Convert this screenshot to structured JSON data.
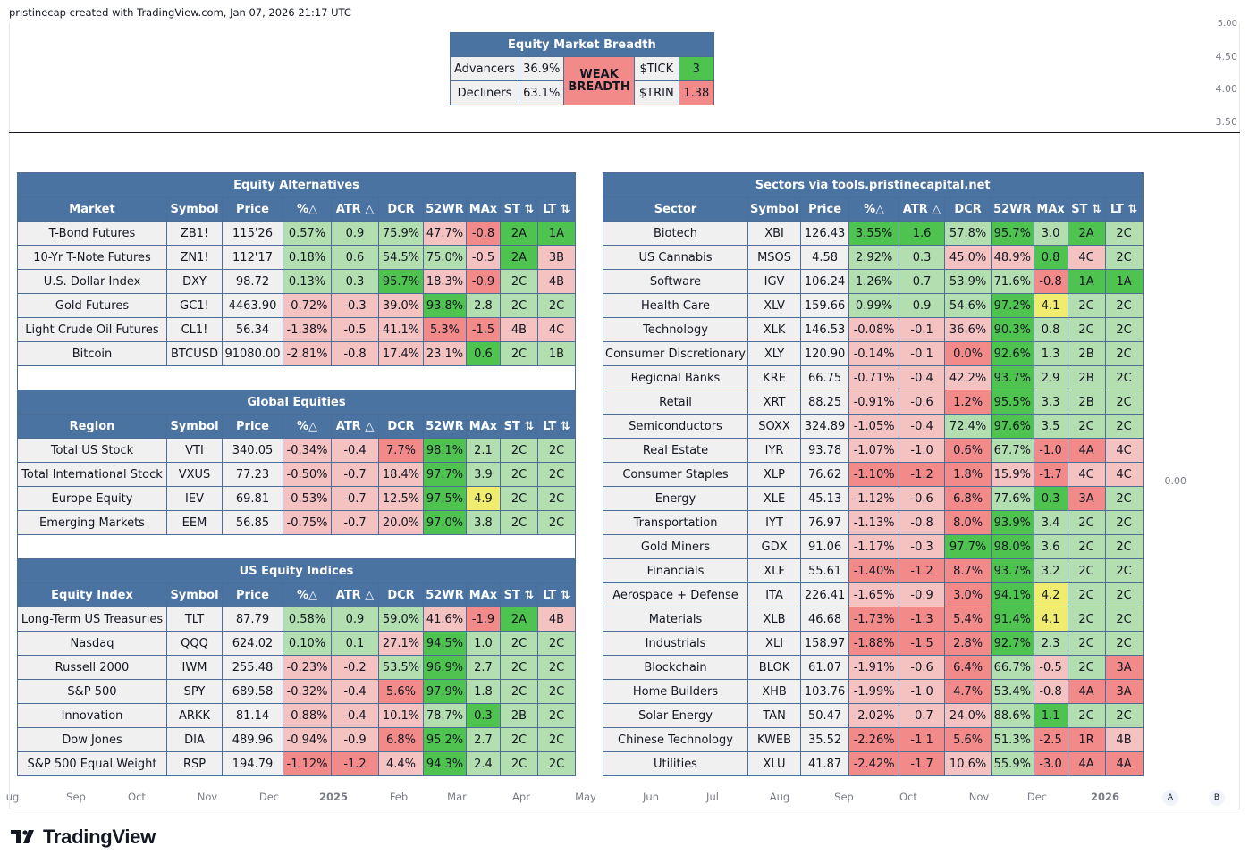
{
  "header": {
    "credit": "pristinecap created with TradingView.com, Jan 07, 2026 21:17 UTC"
  },
  "price_axis": {
    "top": [
      "5.00",
      "4.50",
      "4.00",
      "3.50"
    ],
    "bottom": "0.00"
  },
  "time_axis": [
    "ug",
    "Sep",
    "Oct",
    "Nov",
    "Dec",
    "2025",
    "Feb",
    "Mar",
    "Apr",
    "May",
    "Jun",
    "Jul",
    "Aug",
    "Sep",
    "Oct",
    "Nov",
    "Dec",
    "2026"
  ],
  "time_axis_bold": [
    "2025",
    "2026"
  ],
  "buttons": {
    "a": "A",
    "b": "B"
  },
  "logo": {
    "text": "TradingView"
  },
  "colors": {
    "header_blue": "#4b73a1",
    "green_light": "#b3dfb0",
    "green_strong": "#4fc34f",
    "red_light": "#f5c2c2",
    "red_strong": "#f28a8a",
    "yellow": "#f0ec6f"
  },
  "breadth": {
    "title": "Equity Market Breadth",
    "advancers_label": "Advancers",
    "advancers_value": "36.9%",
    "decliners_label": "Decliners",
    "decliners_value": "63.1%",
    "status": "WEAK BREADTH",
    "tick_label": "$TICK",
    "tick_value": "3",
    "trin_label": "$TRIN",
    "trin_value": "1.38"
  },
  "left_tables": [
    {
      "title": "Equity Alternatives",
      "headers": [
        "Market",
        "Symbol",
        "Price",
        "%△",
        "ATR △",
        "DCR",
        "52WR",
        "MAx",
        "ST ⇅",
        "LT ⇅"
      ],
      "rows": [
        {
          "cells": [
            "T-Bond Futures",
            "ZB1!",
            "115'26",
            "0.57%",
            "0.9",
            "75.9%",
            "47.7%",
            "-0.8",
            "2A",
            "1A"
          ],
          "colors": [
            "",
            "",
            "",
            "g",
            "g",
            "g",
            "r",
            "R",
            "G",
            "G"
          ]
        },
        {
          "cells": [
            "10-Yr T-Note Futures",
            "ZN1!",
            "112'17",
            "0.18%",
            "0.6",
            "54.5%",
            "75.0%",
            "-0.5",
            "2A",
            "3B"
          ],
          "colors": [
            "",
            "",
            "",
            "g",
            "g",
            "g",
            "g",
            "r",
            "G",
            "r"
          ]
        },
        {
          "cells": [
            "U.S. Dollar Index",
            "DXY",
            "98.72",
            "0.13%",
            "0.3",
            "95.7%",
            "18.3%",
            "-0.9",
            "2C",
            "4B"
          ],
          "colors": [
            "",
            "",
            "",
            "g",
            "g",
            "G",
            "r",
            "R",
            "g",
            "r"
          ]
        },
        {
          "cells": [
            "Gold Futures",
            "GC1!",
            "4463.90",
            "-0.72%",
            "-0.3",
            "39.0%",
            "93.8%",
            "2.8",
            "2C",
            "2C"
          ],
          "colors": [
            "",
            "",
            "",
            "r",
            "r",
            "r",
            "G",
            "g",
            "g",
            "g"
          ]
        },
        {
          "cells": [
            "Light Crude Oil Futures",
            "CL1!",
            "56.34",
            "-1.38%",
            "-0.5",
            "41.1%",
            "5.3%",
            "-1.5",
            "4B",
            "4C"
          ],
          "colors": [
            "",
            "",
            "",
            "r",
            "r",
            "r",
            "R",
            "R",
            "r",
            "r"
          ]
        },
        {
          "cells": [
            "Bitcoin",
            "BTCUSD",
            "91080.00",
            "-2.81%",
            "-0.8",
            "17.4%",
            "23.1%",
            "0.6",
            "2C",
            "1B"
          ],
          "colors": [
            "",
            "",
            "",
            "r",
            "r",
            "r",
            "r",
            "G",
            "g",
            "g"
          ]
        }
      ]
    },
    {
      "title": "Global Equities",
      "headers": [
        "Region",
        "Symbol",
        "Price",
        "%△",
        "ATR △",
        "DCR",
        "52WR",
        "MAx",
        "ST ⇅",
        "LT ⇅"
      ],
      "rows": [
        {
          "cells": [
            "Total US Stock",
            "VTI",
            "340.05",
            "-0.34%",
            "-0.4",
            "7.7%",
            "98.1%",
            "2.1",
            "2C",
            "2C"
          ],
          "colors": [
            "",
            "",
            "",
            "r",
            "r",
            "R",
            "G",
            "g",
            "g",
            "g"
          ]
        },
        {
          "cells": [
            "Total International Stock",
            "VXUS",
            "77.23",
            "-0.50%",
            "-0.7",
            "18.4%",
            "97.7%",
            "3.9",
            "2C",
            "2C"
          ],
          "colors": [
            "",
            "",
            "",
            "r",
            "r",
            "r",
            "G",
            "g",
            "g",
            "g"
          ]
        },
        {
          "cells": [
            "Europe Equity",
            "IEV",
            "69.81",
            "-0.53%",
            "-0.7",
            "12.5%",
            "97.5%",
            "4.9",
            "2C",
            "2C"
          ],
          "colors": [
            "",
            "",
            "",
            "r",
            "r",
            "r",
            "G",
            "y",
            "g",
            "g"
          ]
        },
        {
          "cells": [
            "Emerging Markets",
            "EEM",
            "56.85",
            "-0.75%",
            "-0.7",
            "20.0%",
            "97.0%",
            "3.8",
            "2C",
            "2C"
          ],
          "colors": [
            "",
            "",
            "",
            "r",
            "r",
            "r",
            "G",
            "g",
            "g",
            "g"
          ]
        }
      ]
    },
    {
      "title": "US Equity Indices",
      "headers": [
        "Equity Index",
        "Symbol",
        "Price",
        "%△",
        "ATR △",
        "DCR",
        "52WR",
        "MAx",
        "ST ⇅",
        "LT ⇅"
      ],
      "rows": [
        {
          "cells": [
            "Long-Term US Treasuries",
            "TLT",
            "87.79",
            "0.58%",
            "0.9",
            "59.0%",
            "41.6%",
            "-1.9",
            "2A",
            "4B"
          ],
          "colors": [
            "",
            "",
            "",
            "g",
            "g",
            "g",
            "r",
            "R",
            "G",
            "r"
          ]
        },
        {
          "cells": [
            "Nasdaq",
            "QQQ",
            "624.02",
            "0.10%",
            "0.1",
            "27.1%",
            "94.5%",
            "1.0",
            "2C",
            "2C"
          ],
          "colors": [
            "",
            "",
            "",
            "g",
            "g",
            "r",
            "G",
            "g",
            "g",
            "g"
          ]
        },
        {
          "cells": [
            "Russell 2000",
            "IWM",
            "255.48",
            "-0.23%",
            "-0.2",
            "53.5%",
            "96.9%",
            "2.7",
            "2C",
            "2C"
          ],
          "colors": [
            "",
            "",
            "",
            "r",
            "r",
            "g",
            "G",
            "g",
            "g",
            "g"
          ]
        },
        {
          "cells": [
            "S&P 500",
            "SPY",
            "689.58",
            "-0.32%",
            "-0.4",
            "5.6%",
            "97.9%",
            "1.8",
            "2C",
            "2C"
          ],
          "colors": [
            "",
            "",
            "",
            "r",
            "r",
            "R",
            "G",
            "g",
            "g",
            "g"
          ]
        },
        {
          "cells": [
            "Innovation",
            "ARKK",
            "81.14",
            "-0.88%",
            "-0.4",
            "10.1%",
            "78.7%",
            "0.3",
            "2B",
            "2C"
          ],
          "colors": [
            "",
            "",
            "",
            "r",
            "r",
            "r",
            "g",
            "G",
            "g",
            "g"
          ]
        },
        {
          "cells": [
            "Dow Jones",
            "DIA",
            "489.96",
            "-0.94%",
            "-0.9",
            "6.8%",
            "95.2%",
            "2.7",
            "2C",
            "2C"
          ],
          "colors": [
            "",
            "",
            "",
            "r",
            "r",
            "R",
            "G",
            "g",
            "g",
            "g"
          ]
        },
        {
          "cells": [
            "S&P 500 Equal Weight",
            "RSP",
            "194.79",
            "-1.12%",
            "-1.2",
            "4.4%",
            "94.3%",
            "2.4",
            "2C",
            "2C"
          ],
          "colors": [
            "",
            "",
            "",
            "R",
            "R",
            "r",
            "G",
            "g",
            "g",
            "g"
          ]
        }
      ]
    }
  ],
  "sectors": {
    "title": "Sectors via tools.pristinecapital.net",
    "headers": [
      "Sector",
      "Symbol",
      "Price",
      "%△",
      "ATR △",
      "DCR",
      "52WR",
      "MAx",
      "ST ⇅",
      "LT ⇅"
    ],
    "rows": [
      {
        "cells": [
          "Biotech",
          "XBI",
          "126.43",
          "3.55%",
          "1.6",
          "57.8%",
          "95.7%",
          "3.0",
          "2A",
          "2C"
        ],
        "colors": [
          "",
          "",
          "",
          "G",
          "G",
          "g",
          "G",
          "g",
          "G",
          "g"
        ]
      },
      {
        "cells": [
          "US Cannabis",
          "MSOS",
          "4.58",
          "2.92%",
          "0.3",
          "45.0%",
          "48.9%",
          "0.8",
          "4C",
          "2C"
        ],
        "colors": [
          "",
          "",
          "",
          "g",
          "g",
          "r",
          "r",
          "G",
          "r",
          "g"
        ]
      },
      {
        "cells": [
          "Software",
          "IGV",
          "106.24",
          "1.26%",
          "0.7",
          "53.9%",
          "71.6%",
          "-0.8",
          "1A",
          "1A"
        ],
        "colors": [
          "",
          "",
          "",
          "g",
          "g",
          "g",
          "g",
          "R",
          "G",
          "G"
        ]
      },
      {
        "cells": [
          "Health Care",
          "XLV",
          "159.66",
          "0.99%",
          "0.9",
          "54.6%",
          "97.2%",
          "4.1",
          "2C",
          "2C"
        ],
        "colors": [
          "",
          "",
          "",
          "g",
          "g",
          "g",
          "G",
          "y",
          "g",
          "g"
        ]
      },
      {
        "cells": [
          "Technology",
          "XLK",
          "146.53",
          "-0.08%",
          "-0.1",
          "36.6%",
          "90.3%",
          "0.8",
          "2C",
          "2C"
        ],
        "colors": [
          "",
          "",
          "",
          "r",
          "r",
          "r",
          "G",
          "g",
          "g",
          "g"
        ]
      },
      {
        "cells": [
          "Consumer Discretionary",
          "XLY",
          "120.90",
          "-0.14%",
          "-0.1",
          "0.0%",
          "92.6%",
          "1.3",
          "2B",
          "2C"
        ],
        "colors": [
          "",
          "",
          "",
          "r",
          "r",
          "R",
          "G",
          "g",
          "g",
          "g"
        ]
      },
      {
        "cells": [
          "Regional Banks",
          "KRE",
          "66.75",
          "-0.71%",
          "-0.4",
          "42.2%",
          "93.7%",
          "2.9",
          "2B",
          "2C"
        ],
        "colors": [
          "",
          "",
          "",
          "r",
          "r",
          "r",
          "G",
          "g",
          "g",
          "g"
        ]
      },
      {
        "cells": [
          "Retail",
          "XRT",
          "88.25",
          "-0.91%",
          "-0.6",
          "1.2%",
          "95.5%",
          "3.3",
          "2B",
          "2C"
        ],
        "colors": [
          "",
          "",
          "",
          "r",
          "r",
          "R",
          "G",
          "g",
          "g",
          "g"
        ]
      },
      {
        "cells": [
          "Semiconductors",
          "SOXX",
          "324.89",
          "-1.05%",
          "-0.4",
          "72.4%",
          "97.6%",
          "3.5",
          "2C",
          "2C"
        ],
        "colors": [
          "",
          "",
          "",
          "r",
          "r",
          "g",
          "G",
          "g",
          "g",
          "g"
        ]
      },
      {
        "cells": [
          "Real Estate",
          "IYR",
          "93.78",
          "-1.07%",
          "-1.0",
          "0.6%",
          "67.7%",
          "-1.0",
          "4A",
          "4C"
        ],
        "colors": [
          "",
          "",
          "",
          "r",
          "r",
          "R",
          "g",
          "R",
          "R",
          "r"
        ]
      },
      {
        "cells": [
          "Consumer Staples",
          "XLP",
          "76.62",
          "-1.10%",
          "-1.2",
          "1.8%",
          "15.9%",
          "-1.7",
          "4C",
          "4C"
        ],
        "colors": [
          "",
          "",
          "",
          "R",
          "R",
          "R",
          "r",
          "R",
          "r",
          "r"
        ]
      },
      {
        "cells": [
          "Energy",
          "XLE",
          "45.13",
          "-1.12%",
          "-0.6",
          "6.8%",
          "77.6%",
          "0.3",
          "3A",
          "2C"
        ],
        "colors": [
          "",
          "",
          "",
          "r",
          "r",
          "R",
          "g",
          "G",
          "R",
          "g"
        ]
      },
      {
        "cells": [
          "Transportation",
          "IYT",
          "76.97",
          "-1.13%",
          "-0.8",
          "8.0%",
          "93.9%",
          "3.4",
          "2C",
          "2C"
        ],
        "colors": [
          "",
          "",
          "",
          "r",
          "r",
          "R",
          "G",
          "g",
          "g",
          "g"
        ]
      },
      {
        "cells": [
          "Gold Miners",
          "GDX",
          "91.06",
          "-1.17%",
          "-0.3",
          "97.7%",
          "98.0%",
          "3.6",
          "2C",
          "2C"
        ],
        "colors": [
          "",
          "",
          "",
          "r",
          "r",
          "G",
          "G",
          "g",
          "g",
          "g"
        ]
      },
      {
        "cells": [
          "Financials",
          "XLF",
          "55.61",
          "-1.40%",
          "-1.2",
          "8.7%",
          "93.7%",
          "3.2",
          "2C",
          "2C"
        ],
        "colors": [
          "",
          "",
          "",
          "R",
          "R",
          "R",
          "G",
          "g",
          "g",
          "g"
        ]
      },
      {
        "cells": [
          "Aerospace + Defense",
          "ITA",
          "226.41",
          "-1.65%",
          "-0.9",
          "3.0%",
          "94.1%",
          "4.2",
          "2C",
          "2C"
        ],
        "colors": [
          "",
          "",
          "",
          "r",
          "r",
          "R",
          "G",
          "y",
          "g",
          "g"
        ]
      },
      {
        "cells": [
          "Materials",
          "XLB",
          "46.68",
          "-1.73%",
          "-1.3",
          "5.4%",
          "91.4%",
          "4.1",
          "2C",
          "2C"
        ],
        "colors": [
          "",
          "",
          "",
          "R",
          "R",
          "R",
          "G",
          "y",
          "g",
          "g"
        ]
      },
      {
        "cells": [
          "Industrials",
          "XLI",
          "158.97",
          "-1.88%",
          "-1.5",
          "2.8%",
          "92.7%",
          "2.3",
          "2C",
          "2C"
        ],
        "colors": [
          "",
          "",
          "",
          "R",
          "R",
          "R",
          "G",
          "g",
          "g",
          "g"
        ]
      },
      {
        "cells": [
          "Blockchain",
          "BLOK",
          "61.07",
          "-1.91%",
          "-0.6",
          "6.4%",
          "66.7%",
          "-0.5",
          "2C",
          "3A"
        ],
        "colors": [
          "",
          "",
          "",
          "r",
          "r",
          "R",
          "g",
          "r",
          "g",
          "R"
        ]
      },
      {
        "cells": [
          "Home Builders",
          "XHB",
          "103.76",
          "-1.99%",
          "-1.0",
          "4.7%",
          "53.4%",
          "-0.8",
          "4A",
          "3A"
        ],
        "colors": [
          "",
          "",
          "",
          "r",
          "r",
          "R",
          "g",
          "r",
          "R",
          "R"
        ]
      },
      {
        "cells": [
          "Solar Energy",
          "TAN",
          "50.47",
          "-2.02%",
          "-0.7",
          "24.0%",
          "88.6%",
          "1.1",
          "2C",
          "2C"
        ],
        "colors": [
          "",
          "",
          "",
          "r",
          "r",
          "r",
          "g",
          "G",
          "g",
          "g"
        ]
      },
      {
        "cells": [
          "Chinese Technology",
          "KWEB",
          "35.52",
          "-2.26%",
          "-1.1",
          "5.6%",
          "51.3%",
          "-2.5",
          "1R",
          "4B"
        ],
        "colors": [
          "",
          "",
          "",
          "R",
          "R",
          "R",
          "g",
          "R",
          "R",
          "r"
        ]
      },
      {
        "cells": [
          "Utilities",
          "XLU",
          "41.87",
          "-2.42%",
          "-1.7",
          "10.6%",
          "55.9%",
          "-3.0",
          "4A",
          "4A"
        ],
        "colors": [
          "",
          "",
          "",
          "R",
          "R",
          "r",
          "g",
          "R",
          "R",
          "R"
        ]
      }
    ]
  }
}
